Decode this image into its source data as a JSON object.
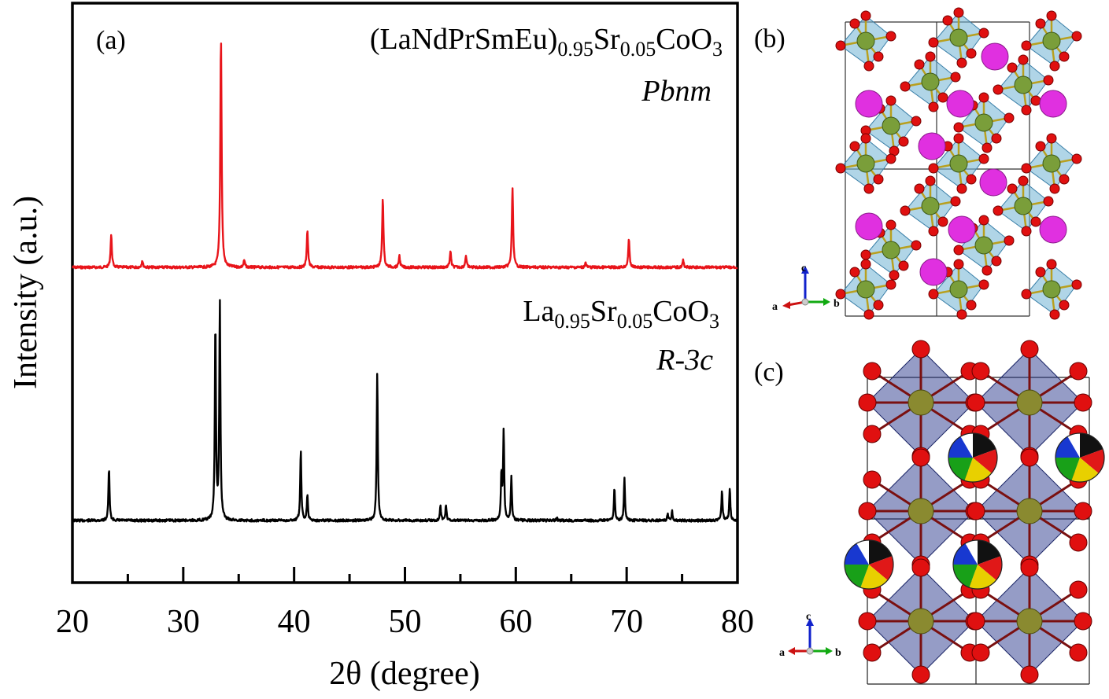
{
  "figure": {
    "panel_labels": {
      "a": "(a)",
      "b": "(b)",
      "c": "(c)"
    },
    "axes_glyphs": {
      "a": "a",
      "b": "b",
      "c": "c"
    },
    "colors": {
      "top_series": "#e8141a",
      "bottom_series": "#000000",
      "octa_b": "#6fb2d4",
      "octa_c": "#2c3a8e",
      "oxygen": "#e01010",
      "cobalt_b": "#7a9e3a",
      "cobalt_c": "#8a8a30",
      "asite_b": "#e030e0",
      "axis_a": "#cc1111",
      "axis_b": "#11aa11",
      "axis_c": "#1122cc"
    }
  },
  "chart_data": {
    "type": "line",
    "title": "",
    "xlabel": "2θ (degree)",
    "ylabel": "Intensity (a.u.)",
    "xlim": [
      20,
      80
    ],
    "xticks": [
      20,
      30,
      40,
      50,
      60,
      70,
      80
    ],
    "grid": false,
    "series": [
      {
        "label_main": "(LaNdPrSmEu)",
        "label_sub1": "0.95",
        "label_mid": "Sr",
        "label_sub2": "0.05",
        "label_end": "CoO",
        "label_sub3": "3",
        "space_group": "Pbnm",
        "baseline": 0,
        "peaks": [
          {
            "x": 23.5,
            "h": 0.14
          },
          {
            "x": 26.3,
            "h": 0.03
          },
          {
            "x": 33.4,
            "h": 1.0
          },
          {
            "x": 35.5,
            "h": 0.03
          },
          {
            "x": 41.2,
            "h": 0.16
          },
          {
            "x": 48.0,
            "h": 0.3
          },
          {
            "x": 49.5,
            "h": 0.05
          },
          {
            "x": 54.1,
            "h": 0.07
          },
          {
            "x": 55.5,
            "h": 0.05
          },
          {
            "x": 59.7,
            "h": 0.34
          },
          {
            "x": 66.3,
            "h": 0.02
          },
          {
            "x": 70.2,
            "h": 0.12
          },
          {
            "x": 75.1,
            "h": 0.03
          }
        ]
      },
      {
        "label_main": "La",
        "label_sub1": "0.95",
        "label_mid": "Sr",
        "label_sub2": "0.05",
        "label_end": "CoO",
        "label_sub3": "3",
        "space_group": "R-3c",
        "baseline": 0,
        "peaks": [
          {
            "x": 23.3,
            "h": 0.23
          },
          {
            "x": 32.9,
            "h": 0.86
          },
          {
            "x": 33.3,
            "h": 0.96
          },
          {
            "x": 40.6,
            "h": 0.31
          },
          {
            "x": 41.2,
            "h": 0.11
          },
          {
            "x": 47.5,
            "h": 0.65
          },
          {
            "x": 53.2,
            "h": 0.07
          },
          {
            "x": 53.7,
            "h": 0.07
          },
          {
            "x": 58.7,
            "h": 0.2
          },
          {
            "x": 58.9,
            "h": 0.39
          },
          {
            "x": 59.6,
            "h": 0.19
          },
          {
            "x": 63.7,
            "h": 0.01
          },
          {
            "x": 68.9,
            "h": 0.14
          },
          {
            "x": 69.8,
            "h": 0.19
          },
          {
            "x": 73.7,
            "h": 0.03
          },
          {
            "x": 74.1,
            "h": 0.04
          },
          {
            "x": 78.6,
            "h": 0.13
          },
          {
            "x": 79.3,
            "h": 0.14
          }
        ]
      }
    ]
  }
}
